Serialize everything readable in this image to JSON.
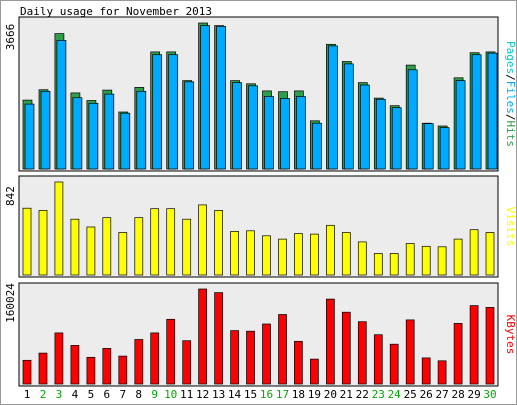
{
  "chart_data": {
    "type": "bar",
    "title": "Daily usage for November 2013",
    "categories": [
      "1",
      "2",
      "3",
      "4",
      "5",
      "6",
      "7",
      "8",
      "9",
      "10",
      "11",
      "12",
      "13",
      "14",
      "15",
      "16",
      "17",
      "18",
      "19",
      "20",
      "21",
      "22",
      "23",
      "24",
      "25",
      "26",
      "27",
      "28",
      "29",
      "30"
    ],
    "weekend_days": [
      "2",
      "3",
      "9",
      "10",
      "16",
      "17",
      "23",
      "24",
      "30"
    ],
    "colors": {
      "background": "#ffffff",
      "panel": "#ececec",
      "frame": "#000000",
      "hits": "#2e9e4a",
      "files": "#00aaff",
      "pages": "#00cccc",
      "visits": "#ffff00",
      "kbytes": "#ff0000",
      "weekday_label": "#000000",
      "weekend_label": "#00aa00"
    },
    "panels": [
      {
        "id": "hits",
        "ylabel": "Pages/Files/Hits",
        "ymax_label": "3666",
        "ymax": 3666,
        "series": [
          {
            "name": "Hits",
            "values": [
              1730,
              1990,
              3400,
              1910,
              1720,
              1980,
              1430,
              2050,
              2940,
              2940,
              2220,
              3666,
              3600,
              2220,
              2140,
              1960,
              1940,
              1960,
              1210,
              3130,
              2700,
              2170,
              1780,
              1590,
              2610,
              1150,
              1080,
              2290,
              2920,
              2940
            ]
          },
          {
            "name": "Files",
            "values": [
              1630,
              1950,
              3230,
              1790,
              1650,
              1880,
              1400,
              1950,
              2870,
              2870,
              2190,
              3600,
              3580,
              2170,
              2090,
              1820,
              1770,
              1820,
              1150,
              3090,
              2640,
              2110,
              1750,
              1540,
              2490,
              1140,
              1040,
              2220,
              2870,
              2910
            ]
          },
          {
            "name": "Pages",
            "values": [
              0,
              0,
              0,
              0,
              0,
              0,
              0,
              0,
              0,
              0,
              0,
              0,
              0,
              0,
              0,
              0,
              0,
              0,
              0,
              0,
              0,
              0,
              0,
              0,
              0,
              0,
              0,
              0,
              0,
              0
            ]
          }
        ]
      },
      {
        "id": "visits",
        "ylabel": "Visits",
        "ymax_label": "842",
        "ymax": 842,
        "series": [
          {
            "name": "Visits",
            "values": [
              605,
              585,
              842,
              505,
              435,
              520,
              385,
              520,
              600,
              600,
              505,
              635,
              585,
              395,
              400,
              355,
              325,
              375,
              370,
              450,
              385,
              300,
              195,
              195,
              285,
              260,
              255,
              325,
              410,
              385
            ]
          }
        ]
      },
      {
        "id": "kbytes",
        "ylabel": "KBytes",
        "ymax_label": "160024",
        "ymax": 160024,
        "series": [
          {
            "name": "KBytes",
            "values": [
              40000,
              52000,
              86000,
              65000,
              45000,
              60000,
              47000,
              75000,
              86000,
              109000,
              73000,
              160024,
              154000,
              90000,
              89000,
              101000,
              117000,
              72000,
              42000,
              143000,
              121000,
              105000,
              83000,
              67000,
              108000,
              44000,
              39000,
              102000,
              132000,
              129000
            ]
          }
        ]
      }
    ]
  }
}
